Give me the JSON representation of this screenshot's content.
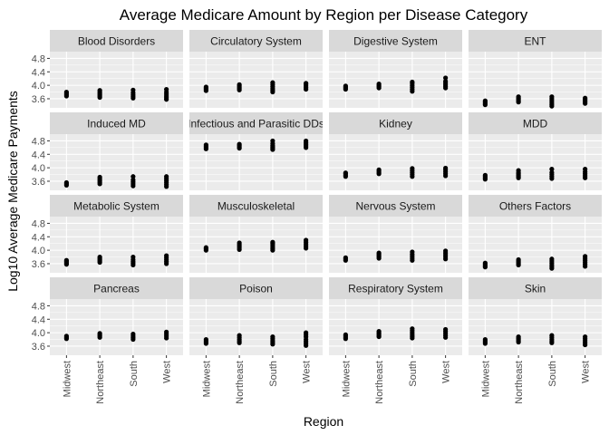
{
  "chart_data": {
    "type": "scatter",
    "title": "Average Medicare Amount by Region per Disease Category",
    "xlabel": "Region",
    "ylabel": "Log10 Average Medicare Payments",
    "categories": [
      "Midwest",
      "Northeast",
      "South",
      "West"
    ],
    "y_ticks": [
      3.6,
      4.0,
      4.4,
      4.8
    ],
    "y_tick_labels": [
      "3.6",
      "4.0",
      "4.4",
      "4.8"
    ],
    "ylim": [
      3.33,
      5.0
    ],
    "grid": true,
    "facet_layout": "4 x 4 grid",
    "colors": {
      "panel_background": "#ebebeb",
      "grid_major": "#ffffff",
      "strip_background": "#d9d9d9",
      "point": "#000000",
      "axis_text": "#4d4d4d"
    },
    "facets": [
      {
        "name": "Blood Disorders",
        "points": [
          [
            "Midwest",
            [
              3.68,
              3.72,
              3.76,
              3.8
            ]
          ],
          [
            "Northeast",
            [
              3.64,
              3.68,
              3.72,
              3.76,
              3.8,
              3.85
            ]
          ],
          [
            "South",
            [
              3.62,
              3.67,
              3.72,
              3.78,
              3.86
            ]
          ],
          [
            "West",
            [
              3.58,
              3.63,
              3.68,
              3.74,
              3.8,
              3.88
            ]
          ]
        ]
      },
      {
        "name": "Circulatory System",
        "points": [
          [
            "Midwest",
            [
              3.84,
              3.88,
              3.92,
              3.95
            ]
          ],
          [
            "Northeast",
            [
              3.86,
              3.9,
              3.94,
              3.98,
              4.02
            ]
          ],
          [
            "South",
            [
              3.8,
              3.85,
              3.9,
              3.96,
              4.02,
              4.08
            ]
          ],
          [
            "West",
            [
              3.88,
              3.93,
              3.98,
              4.03,
              4.06
            ]
          ]
        ]
      },
      {
        "name": "Digestive System",
        "points": [
          [
            "Midwest",
            [
              3.88,
              3.92,
              3.95,
              3.98
            ]
          ],
          [
            "Northeast",
            [
              3.92,
              3.96,
              4.0,
              4.04
            ]
          ],
          [
            "South",
            [
              3.82,
              3.88,
              3.94,
              4.0,
              4.06,
              4.1
            ]
          ],
          [
            "West",
            [
              3.92,
              3.97,
              4.02,
              4.07,
              4.12,
              4.22
            ]
          ]
        ]
      },
      {
        "name": "ENT",
        "points": [
          [
            "Midwest",
            [
              3.42,
              3.46,
              3.5,
              3.54
            ]
          ],
          [
            "Northeast",
            [
              3.5,
              3.54,
              3.58,
              3.62,
              3.66
            ]
          ],
          [
            "South",
            [
              3.38,
              3.43,
              3.48,
              3.54,
              3.6,
              3.66
            ]
          ],
          [
            "West",
            [
              3.46,
              3.5,
              3.54,
              3.58,
              3.62
            ]
          ]
        ]
      },
      {
        "name": "Induced MD",
        "points": [
          [
            "Midwest",
            [
              3.48,
              3.52,
              3.56
            ]
          ],
          [
            "Northeast",
            [
              3.52,
              3.57,
              3.62,
              3.67,
              3.72
            ]
          ],
          [
            "South",
            [
              3.46,
              3.52,
              3.58,
              3.64,
              3.74
            ]
          ],
          [
            "West",
            [
              3.44,
              3.5,
              3.56,
              3.62,
              3.68,
              3.74
            ]
          ]
        ]
      },
      {
        "name": "Infectious and Parasitic DDs",
        "points": [
          [
            "Midwest",
            [
              4.56,
              4.6,
              4.64,
              4.68
            ]
          ],
          [
            "Northeast",
            [
              4.58,
              4.62,
              4.66,
              4.7
            ]
          ],
          [
            "South",
            [
              4.54,
              4.58,
              4.62,
              4.66,
              4.72,
              4.8
            ]
          ],
          [
            "West",
            [
              4.6,
              4.65,
              4.7,
              4.75,
              4.8
            ]
          ]
        ]
      },
      {
        "name": "Kidney",
        "points": [
          [
            "Midwest",
            [
              3.74,
              3.78,
              3.82,
              3.85
            ]
          ],
          [
            "Northeast",
            [
              3.82,
              3.86,
              3.9,
              3.94
            ]
          ],
          [
            "South",
            [
              3.74,
              3.8,
              3.86,
              3.92,
              3.98
            ]
          ],
          [
            "West",
            [
              3.76,
              3.82,
              3.88,
              3.94,
              3.99
            ]
          ]
        ]
      },
      {
        "name": "MDD",
        "points": [
          [
            "Midwest",
            [
              3.66,
              3.7,
              3.74,
              3.78
            ]
          ],
          [
            "Northeast",
            [
              3.7,
              3.74,
              3.78,
              3.82,
              3.86,
              3.92
            ]
          ],
          [
            "South",
            [
              3.68,
              3.74,
              3.8,
              3.86,
              3.96
            ]
          ],
          [
            "West",
            [
              3.7,
              3.76,
              3.82,
              3.88,
              3.96
            ]
          ]
        ]
      },
      {
        "name": "Metabolic System",
        "points": [
          [
            "Midwest",
            [
              3.58,
              3.62,
              3.66,
              3.7
            ]
          ],
          [
            "Northeast",
            [
              3.64,
              3.68,
              3.72,
              3.76,
              3.8
            ]
          ],
          [
            "South",
            [
              3.56,
              3.61,
              3.66,
              3.72,
              3.8
            ]
          ],
          [
            "West",
            [
              3.6,
              3.66,
              3.72,
              3.78,
              3.84
            ]
          ]
        ]
      },
      {
        "name": "Musculoskeletal",
        "points": [
          [
            "Midwest",
            [
              4.0,
              4.04,
              4.08
            ]
          ],
          [
            "Northeast",
            [
              4.02,
              4.07,
              4.12,
              4.17,
              4.22
            ]
          ],
          [
            "South",
            [
              4.0,
              4.05,
              4.1,
              4.15,
              4.2,
              4.24
            ]
          ],
          [
            "West",
            [
              4.06,
              4.12,
              4.18,
              4.24,
              4.3
            ]
          ]
        ]
      },
      {
        "name": "Nervous System",
        "points": [
          [
            "Midwest",
            [
              3.7,
              3.74,
              3.78
            ]
          ],
          [
            "Northeast",
            [
              3.76,
              3.8,
              3.84,
              3.88,
              3.92
            ]
          ],
          [
            "South",
            [
              3.7,
              3.76,
              3.82,
              3.88,
              3.95
            ]
          ],
          [
            "West",
            [
              3.74,
              3.8,
              3.86,
              3.92,
              3.98
            ]
          ]
        ]
      },
      {
        "name": "Others Factors",
        "points": [
          [
            "Midwest",
            [
              3.5,
              3.54,
              3.58,
              3.62
            ]
          ],
          [
            "Northeast",
            [
              3.56,
              3.6,
              3.64,
              3.68,
              3.72
            ]
          ],
          [
            "South",
            [
              3.46,
              3.51,
              3.56,
              3.62,
              3.68,
              3.74
            ]
          ],
          [
            "West",
            [
              3.52,
              3.58,
              3.64,
              3.7,
              3.76,
              3.82
            ]
          ]
        ]
      },
      {
        "name": "Pancreas",
        "points": [
          [
            "Midwest",
            [
              3.82,
              3.86,
              3.9
            ]
          ],
          [
            "Northeast",
            [
              3.86,
              3.9,
              3.94,
              3.98
            ]
          ],
          [
            "South",
            [
              3.8,
              3.85,
              3.9,
              3.96
            ]
          ],
          [
            "West",
            [
              3.84,
              3.9,
              3.96,
              4.02
            ]
          ]
        ]
      },
      {
        "name": "Poison",
        "points": [
          [
            "Midwest",
            [
              3.68,
              3.72,
              3.76,
              3.8
            ]
          ],
          [
            "Northeast",
            [
              3.7,
              3.75,
              3.8,
              3.86,
              3.92
            ]
          ],
          [
            "South",
            [
              3.66,
              3.71,
              3.76,
              3.82,
              3.88
            ]
          ],
          [
            "West",
            [
              3.62,
              3.68,
              3.74,
              3.8,
              3.88,
              3.94,
              4.0
            ]
          ]
        ]
      },
      {
        "name": "Respiratory System",
        "points": [
          [
            "Midwest",
            [
              3.82,
              3.86,
              3.9,
              3.94
            ]
          ],
          [
            "Northeast",
            [
              3.88,
              3.92,
              3.96,
              4.0,
              4.04
            ]
          ],
          [
            "South",
            [
              3.84,
              3.89,
              3.94,
              4.0,
              4.06,
              4.12
            ]
          ],
          [
            "West",
            [
              3.86,
              3.92,
              3.98,
              4.04,
              4.1
            ]
          ]
        ]
      },
      {
        "name": "Skin",
        "points": [
          [
            "Midwest",
            [
              3.68,
              3.72,
              3.76,
              3.8
            ]
          ],
          [
            "Northeast",
            [
              3.72,
              3.76,
              3.8,
              3.84,
              3.88
            ]
          ],
          [
            "South",
            [
              3.7,
              3.75,
              3.8,
              3.86,
              3.92
            ]
          ],
          [
            "West",
            [
              3.64,
              3.7,
              3.76,
              3.82,
              3.88
            ]
          ]
        ]
      }
    ]
  }
}
